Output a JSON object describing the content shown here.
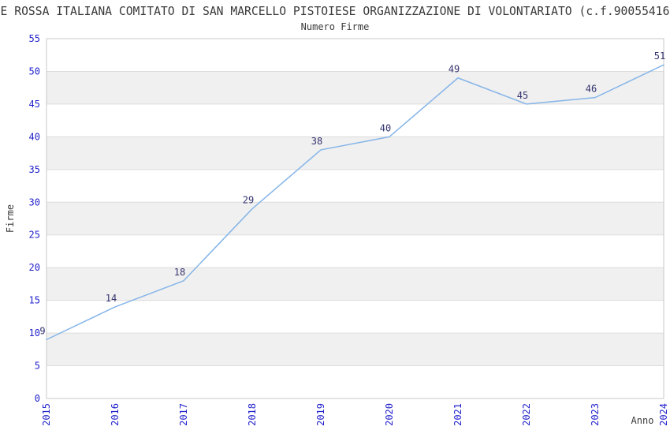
{
  "header": {
    "title": "E ROSSA ITALIANA COMITATO DI SAN MARCELLO PISTOIESE ORGANIZZAZIONE DI VOLONTARIATO (c.f.90055416",
    "subtitle": "Numero Firme"
  },
  "chart_data": {
    "type": "line",
    "title": "Numero Firme",
    "categories": [
      "2015",
      "2016",
      "2017",
      "2018",
      "2019",
      "2020",
      "2021",
      "2022",
      "2023",
      "2024"
    ],
    "series": [
      {
        "name": "Numero Firme",
        "values": [
          9,
          14,
          18,
          29,
          38,
          40,
          49,
          45,
          46,
          51
        ]
      }
    ],
    "xlabel": "Anno",
    "ylabel": "Firme",
    "ylim": [
      0,
      55
    ],
    "ytick_step": 5,
    "grid": true,
    "legend_position": "none",
    "band_alternating": true,
    "data_labels_visible": true
  },
  "colors": {
    "background": "#ffffff",
    "line": "#85b5e8",
    "tick_label": "#2222cc",
    "data_label": "#333370",
    "axis_title": "#3a3a3a",
    "title_text": "#3a3a3a",
    "band_alt": "#f0f0f0",
    "gridline": "#dcdcdc",
    "plot_border": "#c8c8c8"
  }
}
